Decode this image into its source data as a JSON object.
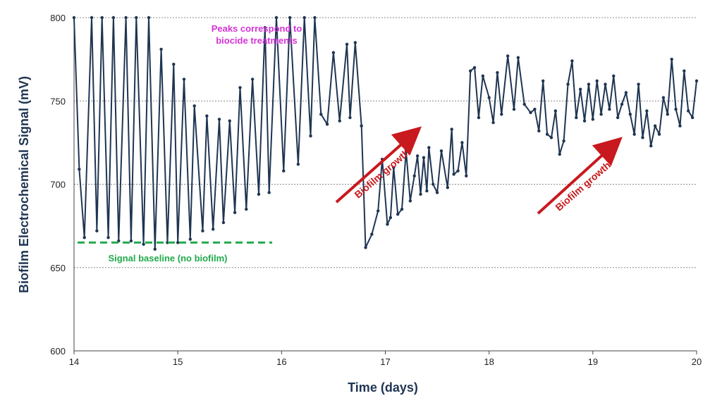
{
  "chart_data": {
    "type": "line",
    "title": "",
    "xlabel": "Time (days)",
    "ylabel": "Biofilm Electrochemical Signal (mV)",
    "xlim": [
      14,
      20
    ],
    "ylim": [
      600,
      800
    ],
    "x_ticks": [
      "14",
      "15",
      "16",
      "17",
      "18",
      "19",
      "20"
    ],
    "y_ticks": [
      "600",
      "650",
      "700",
      "750",
      "800"
    ],
    "grid": "horizontal-dotted",
    "legend": "none",
    "series": [
      {
        "color": "#1f3552",
        "markers": true,
        "x": [
          14.0,
          14.05,
          14.1,
          14.17,
          14.22,
          14.27,
          14.33,
          14.38,
          14.43,
          14.5,
          14.55,
          14.6,
          14.67,
          14.72,
          14.78,
          14.84,
          14.9,
          14.96,
          15.0,
          15.06,
          15.12,
          15.16,
          15.24,
          15.28,
          15.34,
          15.4,
          15.44,
          15.5,
          15.55,
          15.6,
          15.66,
          15.72,
          15.78,
          15.84,
          15.88,
          15.95,
          16.02,
          16.08,
          16.16,
          16.22,
          16.28,
          16.32,
          16.38,
          16.44,
          16.5,
          16.56,
          16.63,
          16.66,
          16.71,
          16.77,
          16.81,
          16.87,
          16.93,
          16.97,
          17.02,
          17.05,
          17.08,
          17.12,
          17.16,
          17.2,
          17.24,
          17.28,
          17.31,
          17.34,
          17.37,
          17.4,
          17.42,
          17.46,
          17.5,
          17.54,
          17.6,
          17.64,
          17.66,
          17.7,
          17.74,
          17.78,
          17.82,
          17.86,
          17.9,
          17.94,
          18.0,
          18.04,
          18.08,
          18.12,
          18.18,
          18.24,
          18.28,
          18.34,
          18.4,
          18.44,
          18.48,
          18.52,
          18.56,
          18.6,
          18.64,
          18.68,
          18.72,
          18.76,
          18.8,
          18.84,
          18.88,
          18.92,
          18.96,
          19.0,
          19.04,
          19.08,
          19.12,
          19.16,
          19.2,
          19.24,
          19.28,
          19.32,
          19.36,
          19.4,
          19.44,
          19.48,
          19.52,
          19.56,
          19.6,
          19.64,
          19.68,
          19.72,
          19.76,
          19.8,
          19.84,
          19.88,
          19.92,
          19.96,
          20.0
        ],
        "values": [
          800,
          709,
          668,
          800,
          672,
          800,
          668,
          800,
          666,
          800,
          666,
          800,
          664,
          800,
          661,
          781,
          665,
          772,
          665,
          763,
          667,
          747,
          672,
          741,
          673,
          739,
          677,
          738,
          683,
          758,
          685,
          763,
          694,
          794,
          695,
          800,
          708,
          800,
          712,
          800,
          729,
          800,
          742,
          736,
          779,
          738,
          784,
          740,
          785,
          735,
          662,
          670,
          684,
          715,
          676,
          680,
          710,
          682,
          685,
          720,
          690,
          705,
          717,
          694,
          716,
          696,
          722,
          700,
          695,
          720,
          698,
          733,
          706,
          708,
          725,
          705,
          768,
          770,
          740,
          765,
          752,
          737,
          767,
          742,
          777,
          745,
          776,
          748,
          743,
          745,
          732,
          762,
          730,
          728,
          744,
          718,
          726,
          760,
          774,
          740,
          757,
          738,
          760,
          739,
          762,
          742,
          760,
          745,
          765,
          740,
          748,
          755,
          742,
          730,
          760,
          728,
          744,
          723,
          735,
          730,
          752,
          742,
          775,
          745,
          735,
          768,
          744,
          740,
          762
        ]
      }
    ],
    "annotations": {
      "peaks_line1": "Peaks correspond to",
      "peaks_line2": "biocide treatments",
      "peaks_color": "#d433d6",
      "baseline_label": "Signal baseline (no biofilm)",
      "baseline_color": "#1faa4a",
      "baseline_value": 665,
      "growth_label": "Biofilm growth",
      "growth_color": "#c8191e"
    }
  }
}
